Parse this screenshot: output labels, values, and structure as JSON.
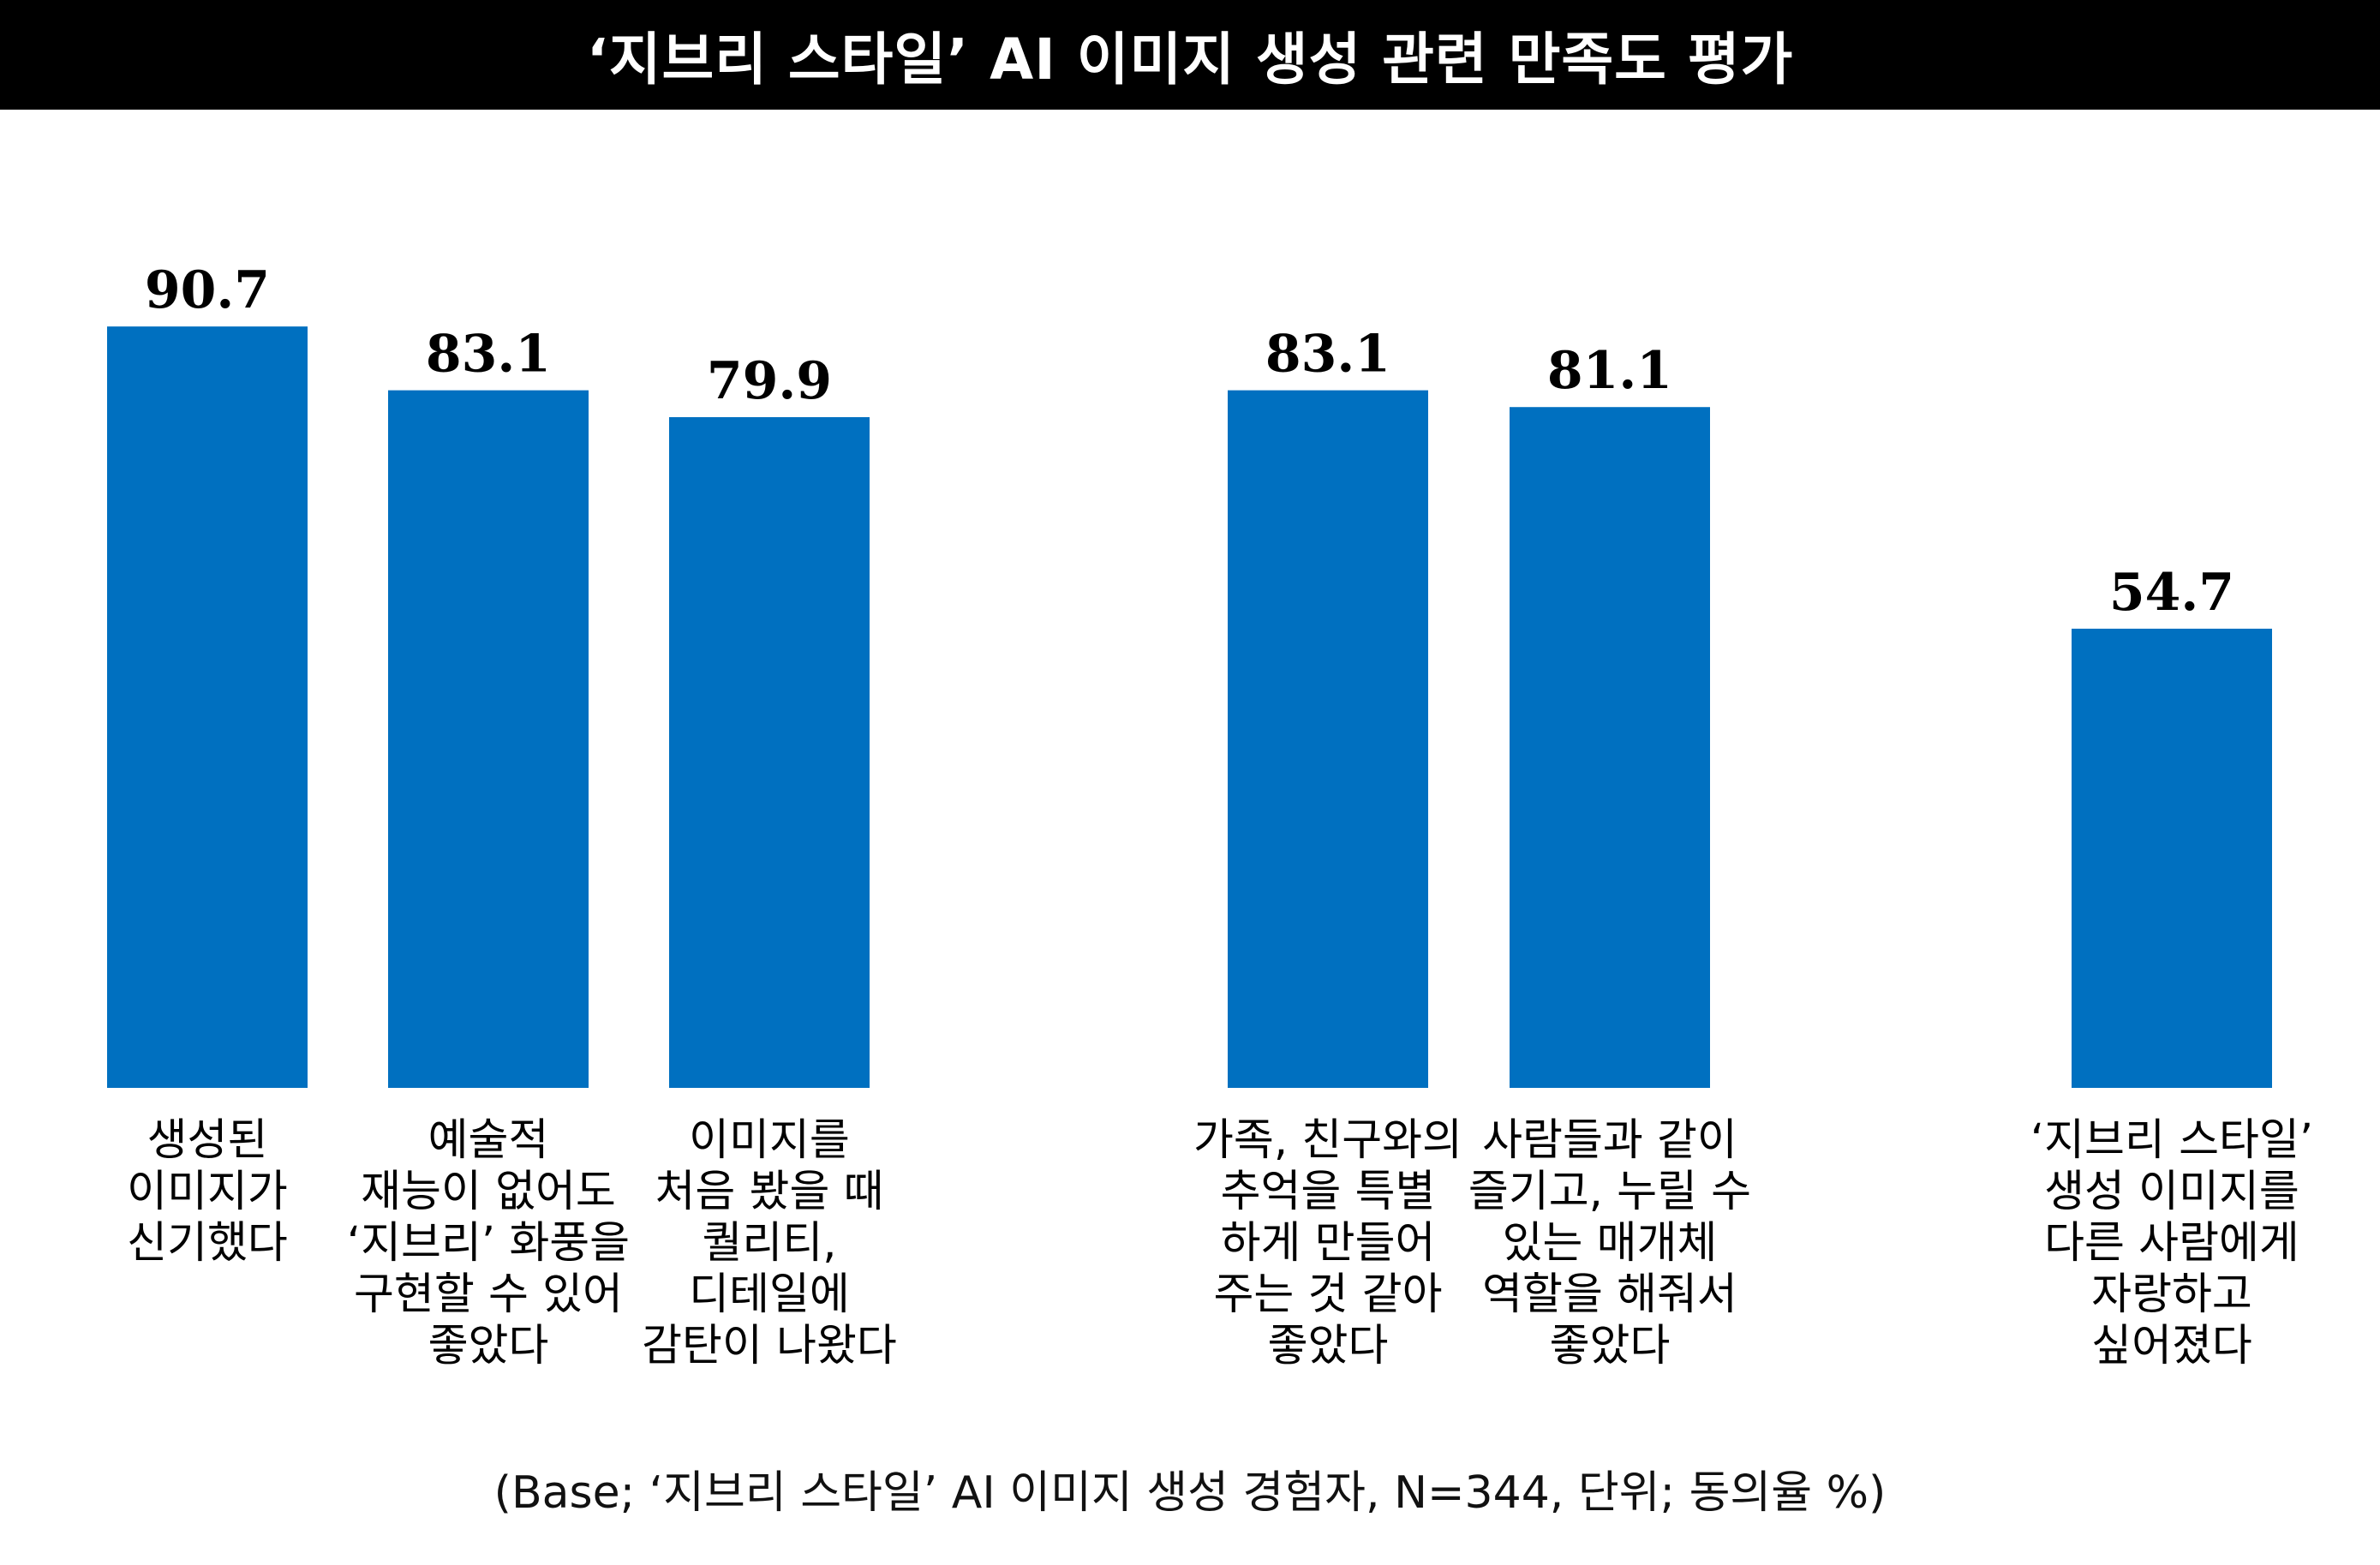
{
  "header": {
    "title": "‘지브리 스타일’ AI 이미지 생성 관련 만족도 평가"
  },
  "footer": {
    "note": "(Base; ‘지브리 스타일’ AI 이미지 생성 경험자, N=344, 단위; 동의율 %)"
  },
  "chart_data": {
    "type": "bar",
    "title": "‘지브리 스타일’ AI 이미지 생성 관련 만족도 평가",
    "bar_color": "#0070C0",
    "ylim": [
      0,
      100
    ],
    "grid": false,
    "categories": [
      "생성된\n이미지가\n신기했다",
      "예술적\n재능이 없어도\n‘지브리’ 화풍을\n구현할 수 있어\n좋았다",
      "이미지를\n처음 봤을 때\n퀄리티,\n디테일에\n감탄이 나왔다",
      "가족, 친구와의\n추억을 특별\n하게 만들어\n주는 것 같아\n좋았다",
      "사람들과 같이\n즐기고, 누릴 수\n있는 매개체\n역할을 해줘서\n좋았다",
      "‘지브리 스타일’\n생성 이미지를\n다른 사람에게\n자랑하고\n싶어졌다"
    ],
    "value_labels": [
      "90.7",
      "83.1",
      "79.9",
      "83.1",
      "81.1",
      "54.7"
    ],
    "values": [
      90.7,
      83.1,
      79.9,
      83.1,
      81.1,
      54.7
    ]
  }
}
